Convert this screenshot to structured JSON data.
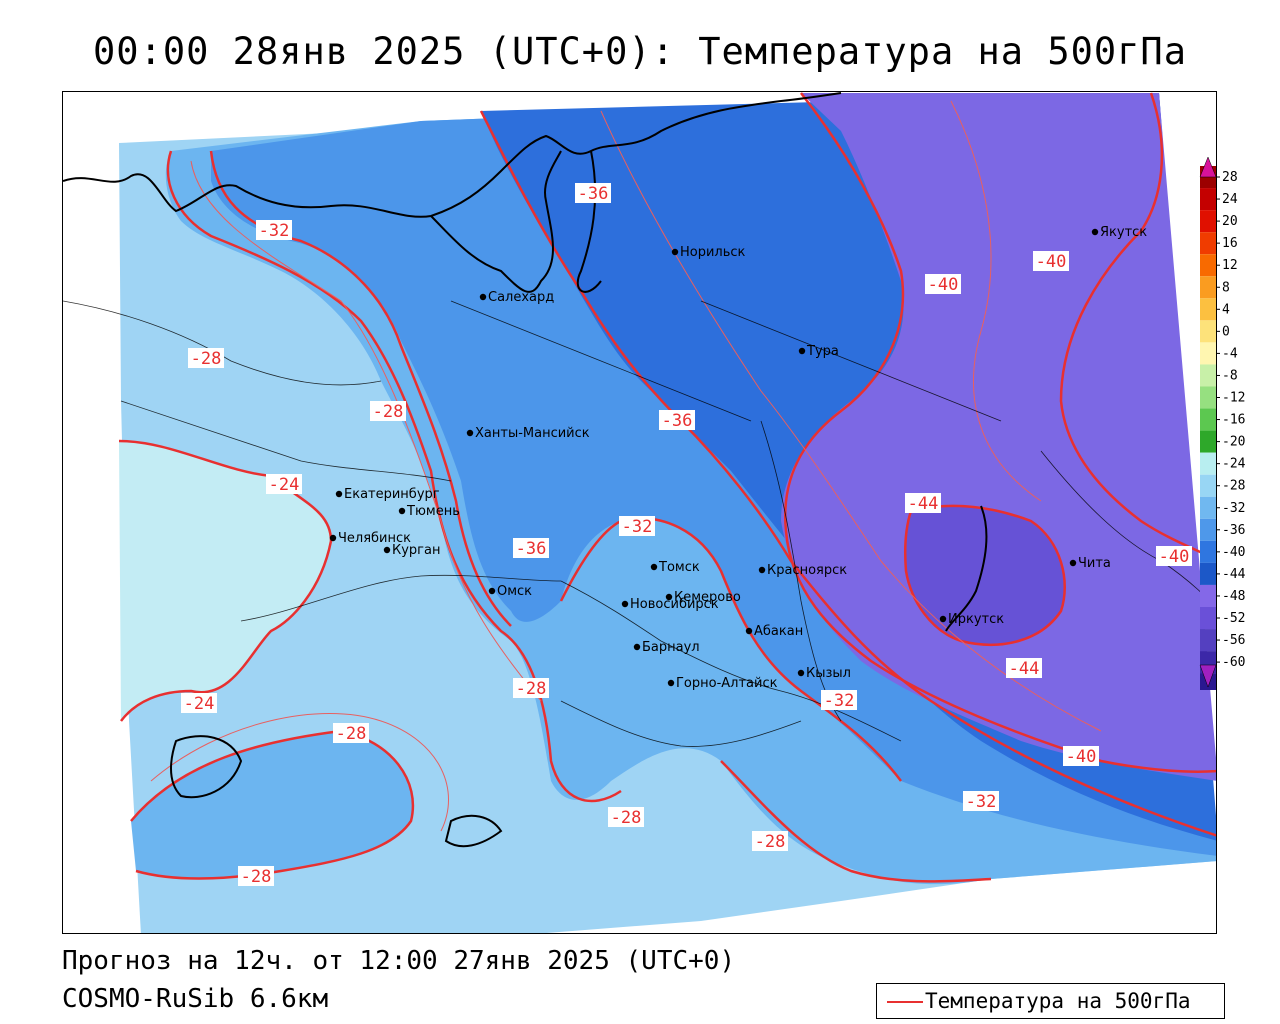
{
  "title": "00:00 28янв 2025 (UTC+0): Температура на 500гПа",
  "forecast_line": "Прогноз на 12ч. от 12:00 27янв 2025 (UTC+0)",
  "model_line": "COSMO-RuSib 6.6км",
  "legend": {
    "label": "Температура на 500гПа",
    "color": "#e83030"
  },
  "colorbar": {
    "ticks": [
      "28",
      "24",
      "20",
      "16",
      "12",
      "8",
      "4",
      "0",
      "-4",
      "-8",
      "-12",
      "-16",
      "-20",
      "-24",
      "-28",
      "-32",
      "-36",
      "-40",
      "-44",
      "-48",
      "-52",
      "-56",
      "-60"
    ],
    "colors": [
      "#9c0000",
      "#c40000",
      "#e01000",
      "#f03c00",
      "#f86a00",
      "#fa9c20",
      "#fcc040",
      "#fde27a",
      "#fff6b0",
      "#c8f0a8",
      "#96e080",
      "#5cc850",
      "#2ea82a",
      "#b8eef0",
      "#98d6f4",
      "#70b8f0",
      "#4e98ea",
      "#2f76e0",
      "#1c58c8",
      "#8468e8",
      "#6a50d8",
      "#5440c0",
      "#3c28a8",
      "#2a1890"
    ]
  },
  "isotherm_labels": [
    {
      "text": "-32"
    },
    {
      "text": "-36"
    },
    {
      "text": "-28"
    },
    {
      "text": "-28"
    },
    {
      "text": "-24"
    },
    {
      "text": "-36"
    },
    {
      "text": "-36"
    },
    {
      "text": "-32"
    },
    {
      "text": "-40"
    },
    {
      "text": "-40"
    },
    {
      "text": "-44"
    },
    {
      "text": "-44"
    },
    {
      "text": "-40"
    },
    {
      "text": "-40"
    },
    {
      "text": "-32"
    },
    {
      "text": "-32"
    },
    {
      "text": "-28"
    },
    {
      "text": "-28"
    },
    {
      "text": "-28"
    },
    {
      "text": "-24"
    },
    {
      "text": "-28"
    },
    {
      "text": "-28"
    }
  ],
  "cities": [
    {
      "name": "Норильск"
    },
    {
      "name": "Салехард"
    },
    {
      "name": "Тура"
    },
    {
      "name": "Якутск"
    },
    {
      "name": "Ханты-Мансийск"
    },
    {
      "name": "Екатеринбург"
    },
    {
      "name": "Тюмень"
    },
    {
      "name": "Челябинск"
    },
    {
      "name": "Курган"
    },
    {
      "name": "Омск"
    },
    {
      "name": "Новосибирск"
    },
    {
      "name": "Томск"
    },
    {
      "name": "Кемерово"
    },
    {
      "name": "Красноярск"
    },
    {
      "name": "Абакан"
    },
    {
      "name": "Барнаул"
    },
    {
      "name": "Горно-Алтайск"
    },
    {
      "name": "Кызыл"
    },
    {
      "name": "Иркутск"
    },
    {
      "name": "Чита"
    }
  ]
}
